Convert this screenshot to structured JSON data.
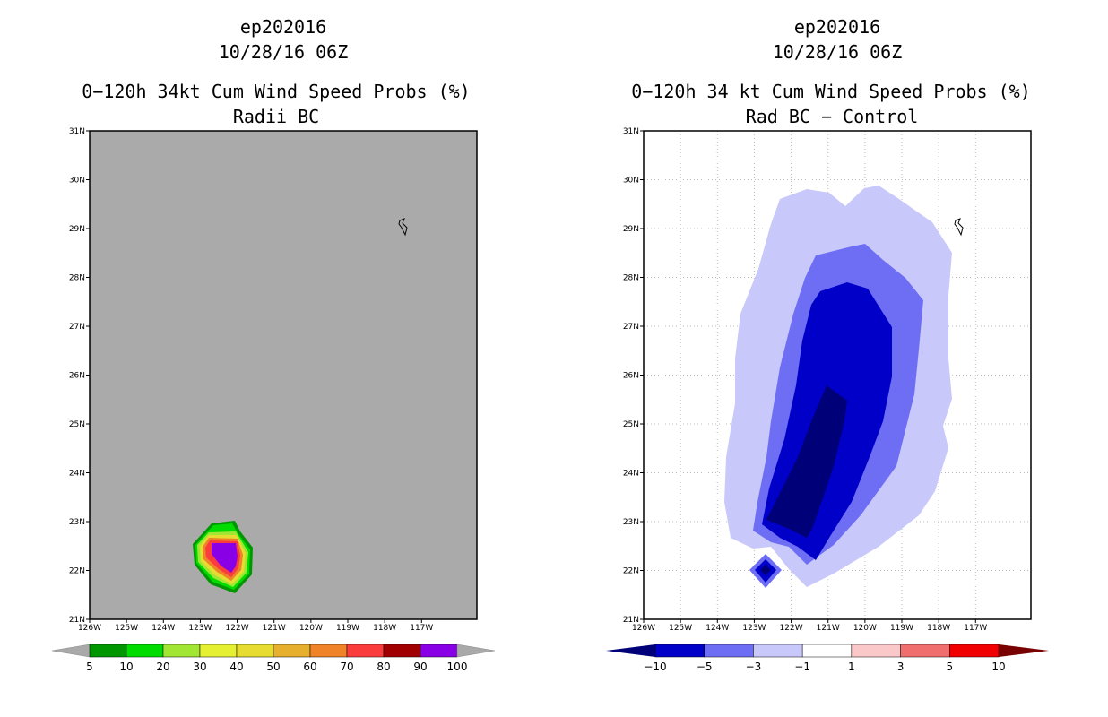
{
  "left": {
    "title1": "ep202016",
    "title2": "10/28/16 06Z",
    "title3": "0−120h 34kt Cum Wind Speed Probs (%)",
    "title4": "Radii BC",
    "field_bg": "#aaaaaa",
    "lat_labels": [
      "31N",
      "30N",
      "29N",
      "28N",
      "27N",
      "26N",
      "25N",
      "24N",
      "23N",
      "22N",
      "21N"
    ],
    "lon_labels": [
      "126W",
      "125W",
      "124W",
      "123W",
      "122W",
      "121W",
      "120W",
      "119W",
      "118W",
      "117W"
    ],
    "colorbar": {
      "colors": [
        "#009600",
        "#00dc00",
        "#a0e632",
        "#e6f032",
        "#e6dc32",
        "#e6af2d",
        "#f08228",
        "#fa3c3c",
        "#a00000",
        "#8a00e6"
      ],
      "labels": [
        "5",
        "10",
        "20",
        "30",
        "40",
        "50",
        "60",
        "70",
        "80",
        "90",
        "100"
      ]
    }
  },
  "right": {
    "title1": "ep202016",
    "title2": "10/28/16 06Z",
    "title3": "0−120h 34 kt Cum Wind Speed Probs (%)",
    "title4": "Rad BC − Control",
    "lat_labels": [
      "31N",
      "30N",
      "29N",
      "28N",
      "27N",
      "26N",
      "25N",
      "24N",
      "23N",
      "22N",
      "21N"
    ],
    "lon_labels": [
      "126W",
      "125W",
      "124W",
      "123W",
      "122W",
      "121W",
      "120W",
      "119W",
      "118W",
      "117W"
    ],
    "colorbar": {
      "colors": [
        "#0000c8",
        "#6e6ef5",
        "#c8c8fa",
        "#ffffff",
        "#fac8c8",
        "#f06e6e",
        "#f00000"
      ],
      "end_low": "#000078",
      "end_high": "#780000",
      "labels": [
        "−10",
        "−5",
        "−3",
        "−1",
        "1",
        "3",
        "5",
        "10"
      ]
    }
  }
}
